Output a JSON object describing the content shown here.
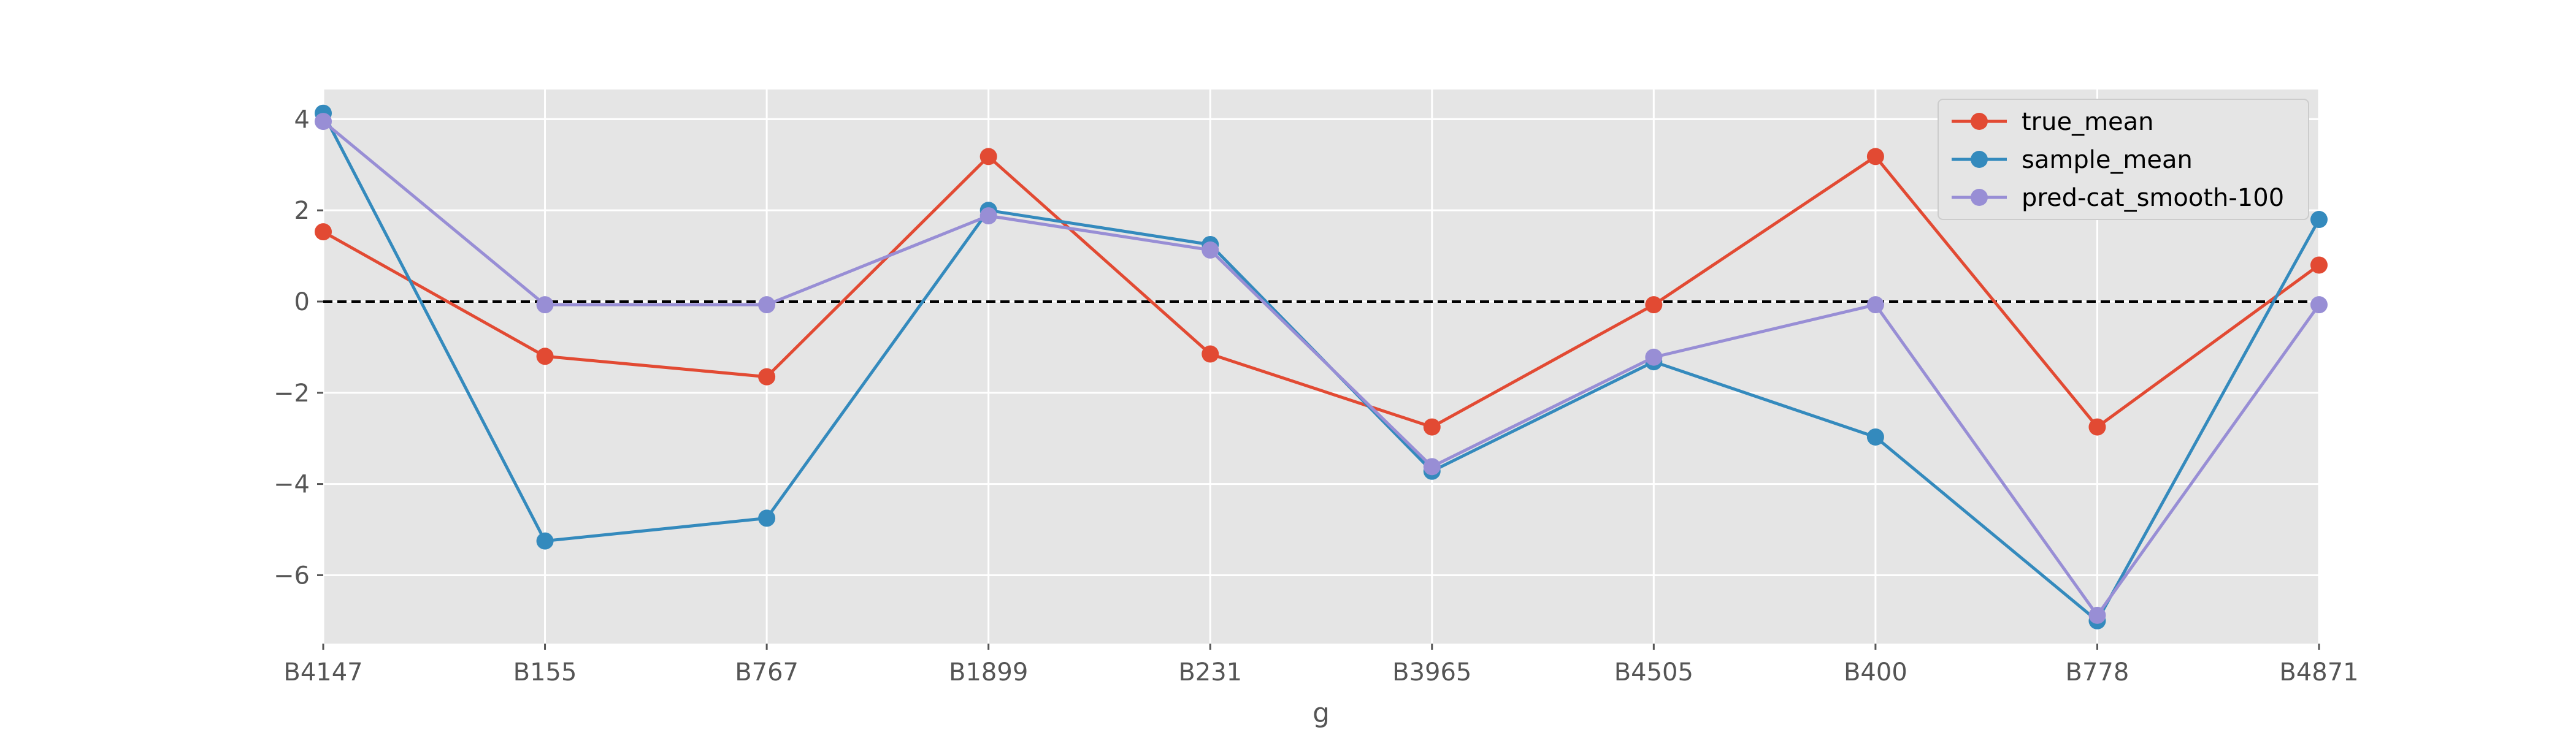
{
  "chart_data": {
    "type": "line",
    "title": "",
    "xlabel": "g",
    "ylabel": "",
    "categories": [
      "B4147",
      "B155",
      "B767",
      "B1899",
      "B231",
      "B3965",
      "B4505",
      "B400",
      "B778",
      "B4871"
    ],
    "ylim": [
      -7.5,
      4.65
    ],
    "yticks": [
      4,
      2,
      0,
      -2,
      -4,
      -6
    ],
    "ytick_labels": [
      "4",
      "2",
      "0",
      "−2",
      "−4",
      "−6"
    ],
    "grid": true,
    "reference_line": {
      "y": 0,
      "style": "dashed",
      "color": "#000000"
    },
    "legend_position": "top-right",
    "series": [
      {
        "name": "true_mean",
        "color": "#E24A33",
        "values": [
          1.53,
          -1.2,
          -1.65,
          3.18,
          -1.15,
          -2.75,
          -0.07,
          3.18,
          -2.75,
          0.8
        ]
      },
      {
        "name": "sample_mean",
        "color": "#348ABD",
        "values": [
          4.13,
          -5.25,
          -4.75,
          2.0,
          1.25,
          -3.72,
          -1.32,
          -2.97,
          -7.0,
          1.8
        ]
      },
      {
        "name": "pred-cat_smooth-100",
        "color": "#988ED5",
        "values": [
          3.95,
          -0.07,
          -0.07,
          1.88,
          1.13,
          -3.62,
          -1.22,
          -0.07,
          -6.88,
          -0.07
        ]
      }
    ]
  }
}
